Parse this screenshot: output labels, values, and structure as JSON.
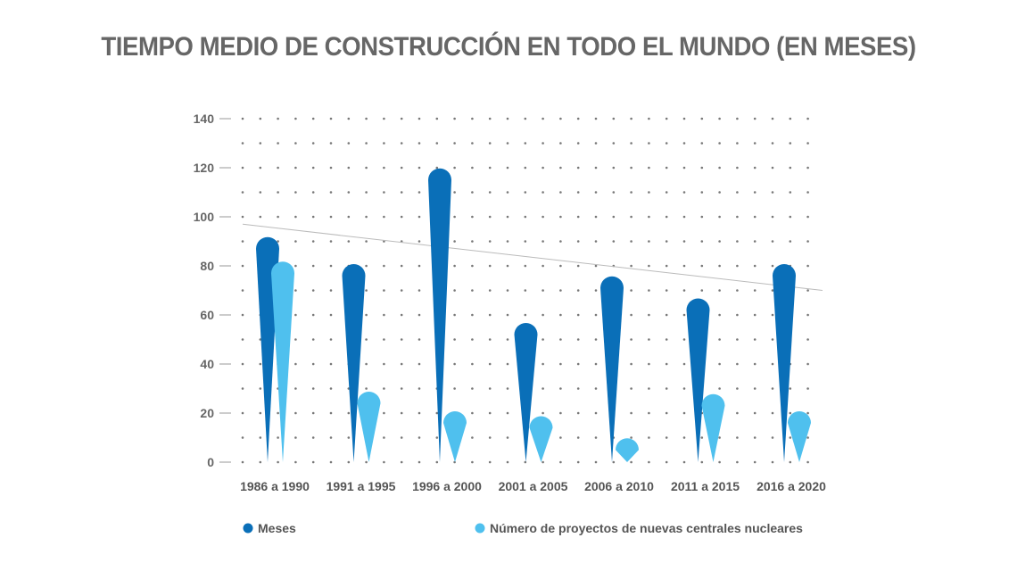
{
  "chart_data": {
    "type": "bar",
    "title": "TIEMPO MEDIO DE CONSTRUCCIÓN EN TODO EL MUNDO (EN MESES)",
    "categories": [
      "1986 a 1990",
      "1991 a 1995",
      "1996 a 2000",
      "2001 a 2005",
      "2006 a 2010",
      "2011 a 2015",
      "2016 a 2020"
    ],
    "series": [
      {
        "name": "Meses",
        "color": "#0a6fb8",
        "values": [
          91,
          80,
          119,
          56,
          75,
          66,
          80
        ]
      },
      {
        "name": "Número de proyectos de nuevas centrales nucleares",
        "color": "#4fc0ee",
        "values": [
          81,
          28,
          20,
          18,
          9,
          27,
          20
        ]
      }
    ],
    "yticks": [
      0,
      20,
      40,
      60,
      80,
      100,
      120,
      140
    ],
    "ylim": [
      0,
      140
    ],
    "trendline": {
      "start": 97,
      "end": 70,
      "color": "#bbbbbb"
    },
    "grid": "dotted",
    "legend_position": "bottom"
  }
}
